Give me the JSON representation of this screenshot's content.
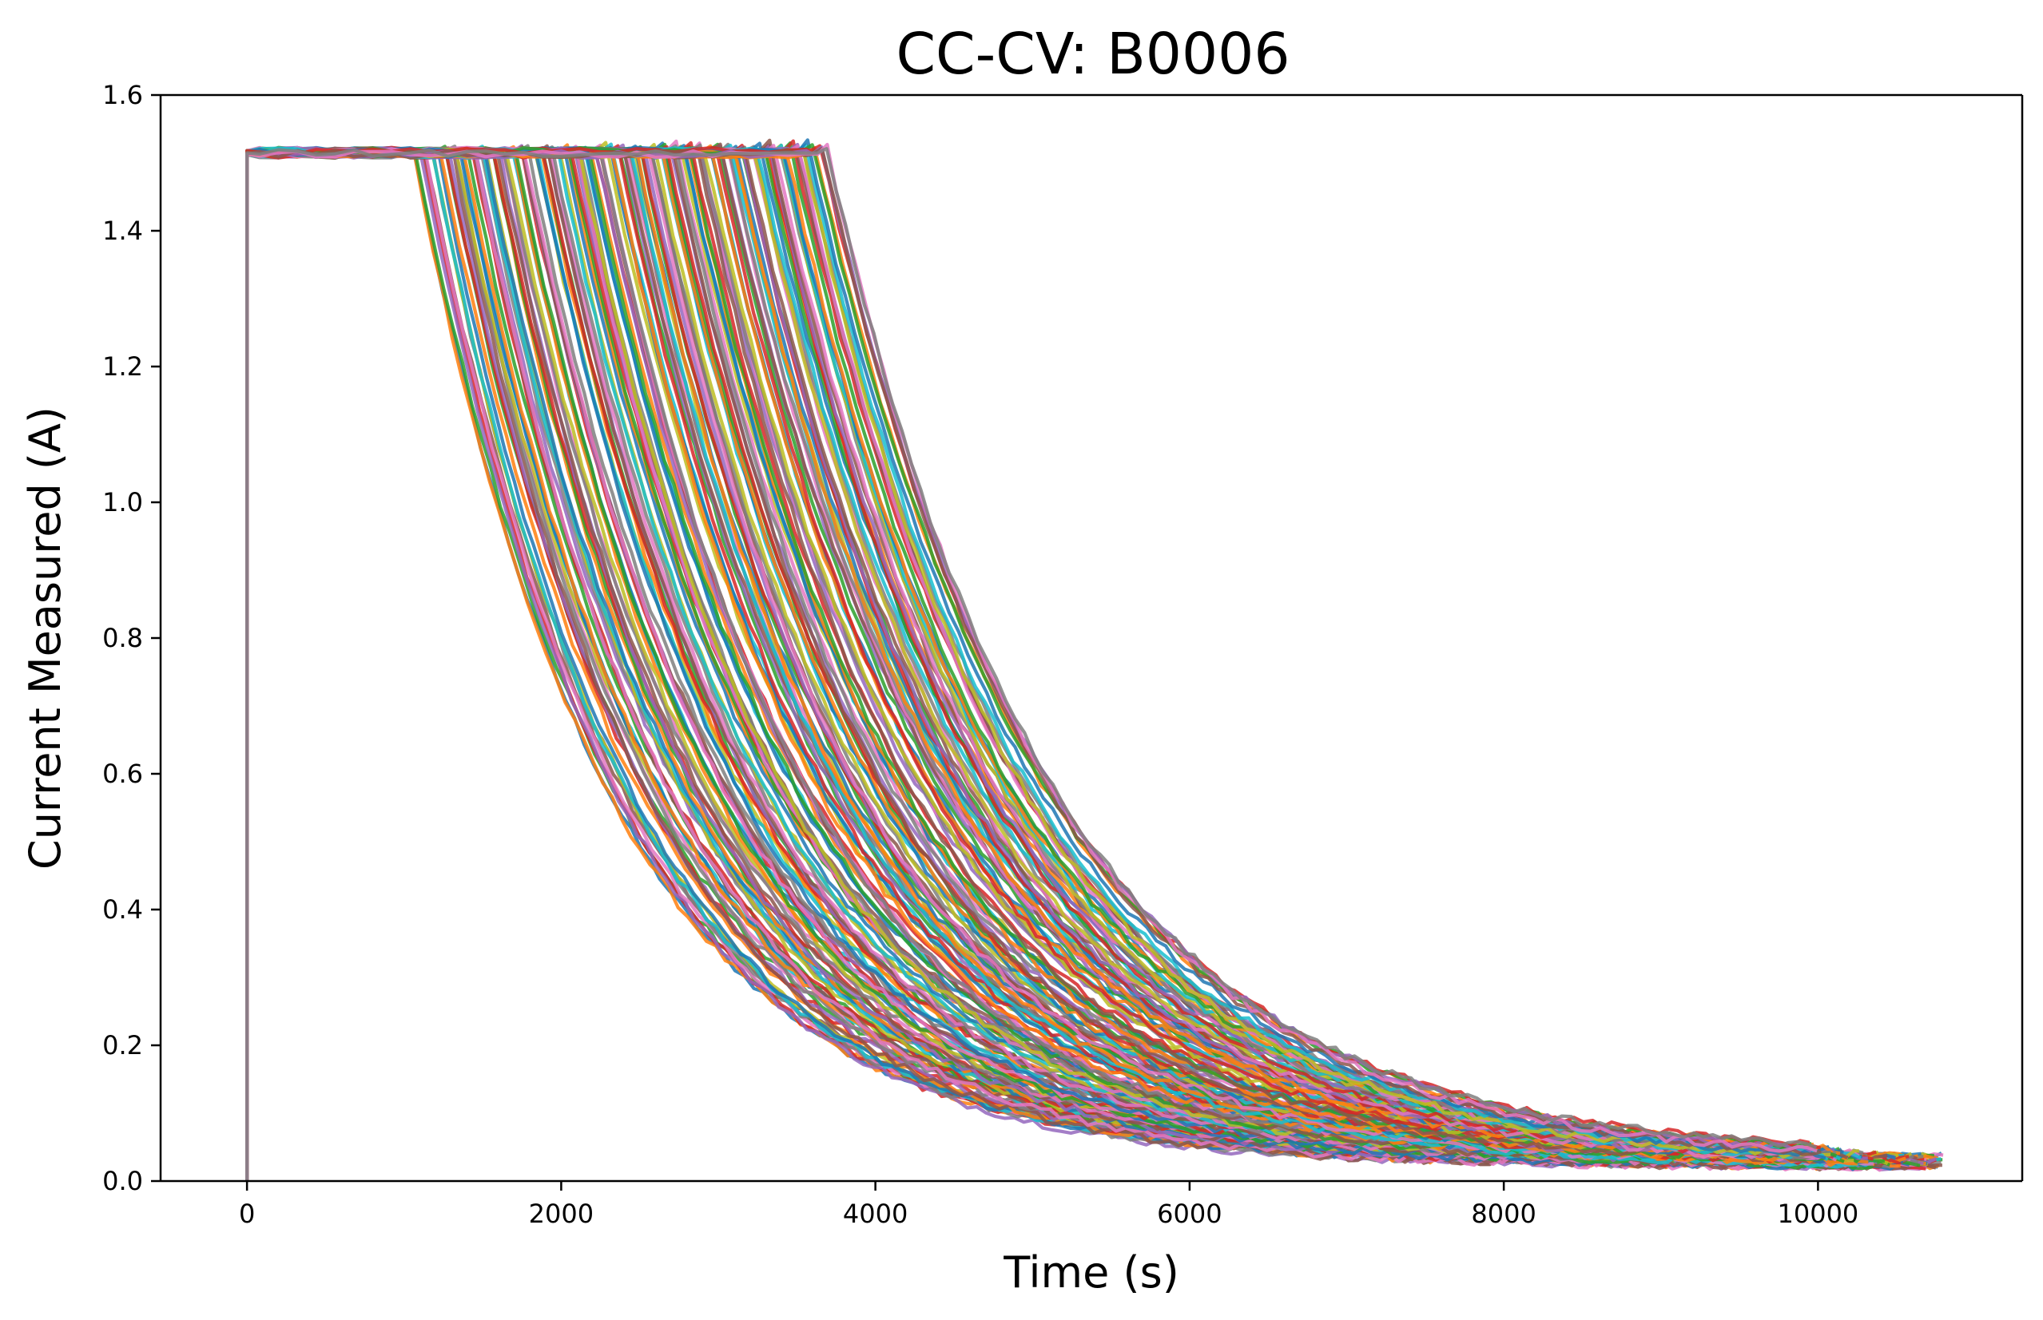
{
  "chart_data": {
    "type": "line",
    "title": "CC-CV: B0006",
    "xlabel": "Time (s)",
    "ylabel": "Current Measured (A)",
    "xlim": [
      -550,
      11300
    ],
    "ylim": [
      0.0,
      1.6
    ],
    "x_ticks": [
      "0",
      "2000",
      "4000",
      "6000",
      "8000",
      "10000"
    ],
    "x_tick_values": [
      0,
      2000,
      4000,
      6000,
      8000,
      10000
    ],
    "y_ticks": [
      "0.0",
      "0.2",
      "0.4",
      "0.6",
      "0.8",
      "1.0",
      "1.2",
      "1.4",
      "1.6"
    ],
    "y_tick_values": [
      0.0,
      0.2,
      0.4,
      0.6,
      0.8,
      1.0,
      1.2,
      1.4,
      1.6
    ],
    "grid": false,
    "legend": "none",
    "model": {
      "cycles": 168,
      "cc_current": 1.515,
      "cc_end_time_range": [
        1000,
        3630
      ],
      "end_time_range": [
        10000,
        10830
      ],
      "end_current_range": [
        0.02,
        0.035
      ]
    },
    "series_colors": [
      "#1f77b4",
      "#ff7f0e",
      "#2ca02c",
      "#d62728",
      "#9467bd",
      "#8c564b",
      "#e377c2",
      "#7f7f7f",
      "#bcbd22",
      "#17becf"
    ],
    "series": [
      {
        "cc_end": 1000,
        "tau": 1250,
        "t_end": 10800,
        "i_end": 0.03
      },
      {
        "cc_end": 1300,
        "tau": 1300,
        "t_end": 10750,
        "i_end": 0.028
      },
      {
        "cc_end": 1600,
        "tau": 1330,
        "t_end": 10700,
        "i_end": 0.03
      },
      {
        "cc_end": 1900,
        "tau": 1360,
        "t_end": 10650,
        "i_end": 0.027
      },
      {
        "cc_end": 2200,
        "tau": 1380,
        "t_end": 10600,
        "i_end": 0.029
      },
      {
        "cc_end": 2500,
        "tau": 1400,
        "t_end": 10500,
        "i_end": 0.031
      },
      {
        "cc_end": 2800,
        "tau": 1420,
        "t_end": 10400,
        "i_end": 0.03
      },
      {
        "cc_end": 3100,
        "tau": 1440,
        "t_end": 10300,
        "i_end": 0.032
      },
      {
        "cc_end": 3400,
        "tau": 1460,
        "t_end": 10200,
        "i_end": 0.033
      },
      {
        "cc_end": 3630,
        "tau": 1480,
        "t_end": 10100,
        "i_end": 0.034
      }
    ]
  }
}
